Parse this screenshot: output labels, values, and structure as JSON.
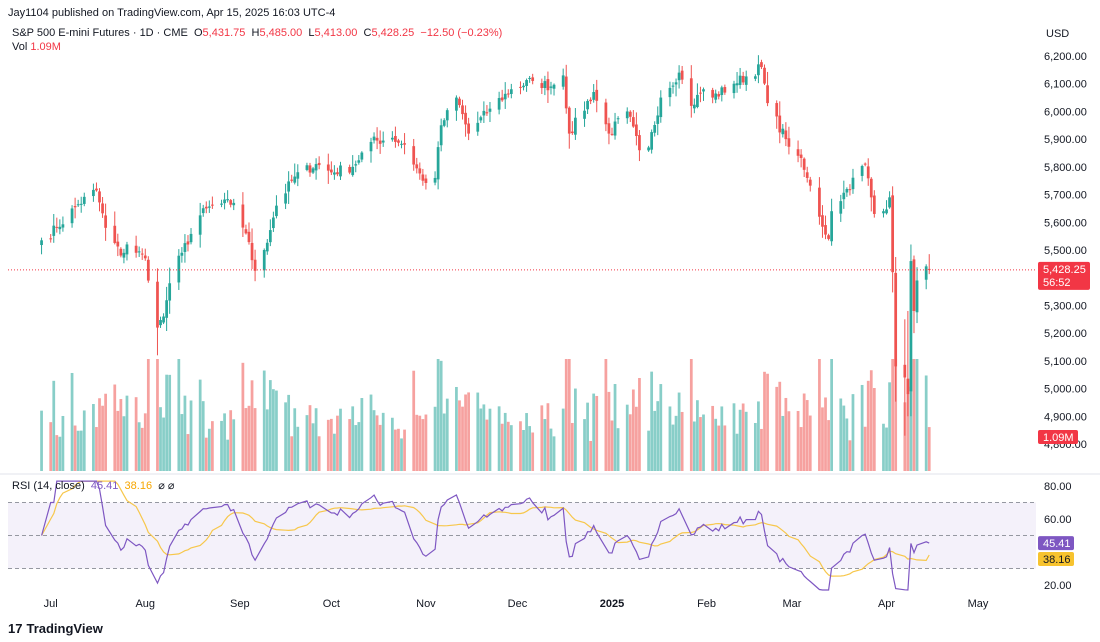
{
  "header": {
    "published": "Jay1104 published on TradingView.com, Apr 15, 2025 16:03 UTC-4",
    "symbol": "S&P 500 E-mini Futures · 1D · CME",
    "o_label": "O",
    "o_value": "5,431.75",
    "h_label": "H",
    "h_value": "5,485.00",
    "l_label": "L",
    "l_value": "5,413.00",
    "c_label": "C",
    "c_value": "5,428.25",
    "change": "−12.50 (−0.23%)",
    "vol_label": "Vol",
    "vol_value": "1.09M"
  },
  "price_axis": {
    "currency": "USD",
    "ticks": [
      "6,200.00",
      "6,100.00",
      "6,000.00",
      "5,900.00",
      "5,800.00",
      "5,700.00",
      "5,600.00",
      "5,500.00",
      "5,400.00",
      "5,300.00",
      "5,200.00",
      "5,100.00",
      "5,000.00",
      "4,900.00",
      "4,800.00"
    ],
    "last_price": "5,428.25",
    "countdown": "56:52",
    "vol_badge": "1.09M"
  },
  "rsi": {
    "label": "RSI (14, close)",
    "value": "45.41",
    "ma_value": "38.16",
    "icons": "⌀ ⌀",
    "ticks": [
      "80.00",
      "60.00",
      "20.00"
    ],
    "band_upper": 70,
    "band_middle": 50,
    "band_lower": 30
  },
  "time_axis": [
    "Jul",
    "Aug",
    "Sep",
    "Oct",
    "Nov",
    "Dec",
    "2025",
    "Feb",
    "Mar",
    "Apr",
    "May"
  ],
  "footer": {
    "brand": "TradingView",
    "logo": "17"
  },
  "colors": {
    "up": "#26a69a",
    "down": "#ef5350",
    "rsi": "#7e57c2",
    "rsi_ma": "#f7c74b",
    "band": "#ede7f6",
    "last": "#f23645"
  },
  "chart_data": {
    "type": "candlestick",
    "title": "S&P 500 E-mini Futures · 1D · CME",
    "ylabel": "USD",
    "ylim": [
      4750,
      6250
    ],
    "rsi_ylim": [
      15,
      85
    ],
    "anchors_close": [
      [
        "2024-06-28",
        5535
      ],
      [
        "2024-07-03",
        5580
      ],
      [
        "2024-07-10",
        5665
      ],
      [
        "2024-07-16",
        5715
      ],
      [
        "2024-07-19",
        5580
      ],
      [
        "2024-07-24",
        5480
      ],
      [
        "2024-07-26",
        5520
      ],
      [
        "2024-08-01",
        5470
      ],
      [
        "2024-08-05",
        5220
      ],
      [
        "2024-08-07",
        5260
      ],
      [
        "2024-08-09",
        5380
      ],
      [
        "2024-08-13",
        5490
      ],
      [
        "2024-08-19",
        5625
      ],
      [
        "2024-08-23",
        5660
      ],
      [
        "2024-08-30",
        5670
      ],
      [
        "2024-09-03",
        5560
      ],
      [
        "2024-09-06",
        5425
      ],
      [
        "2024-09-09",
        5500
      ],
      [
        "2024-09-13",
        5660
      ],
      [
        "2024-09-19",
        5765
      ],
      [
        "2024-09-26",
        5810
      ],
      [
        "2024-10-01",
        5780
      ],
      [
        "2024-10-08",
        5800
      ],
      [
        "2024-10-14",
        5890
      ],
      [
        "2024-10-21",
        5905
      ],
      [
        "2024-10-25",
        5880
      ],
      [
        "2024-10-31",
        5750
      ],
      [
        "2024-11-04",
        5760
      ],
      [
        "2024-11-06",
        5950
      ],
      [
        "2024-11-11",
        6050
      ],
      [
        "2024-11-15",
        5920
      ],
      [
        "2024-11-22",
        6010
      ],
      [
        "2024-11-29",
        6080
      ],
      [
        "2024-12-06",
        6110
      ],
      [
        "2024-12-12",
        6090
      ],
      [
        "2024-12-16",
        6130
      ],
      [
        "2024-12-18",
        5920
      ],
      [
        "2024-12-26",
        6070
      ],
      [
        "2024-12-31",
        5920
      ],
      [
        "2025-01-06",
        6000
      ],
      [
        "2025-01-10",
        5860
      ],
      [
        "2025-01-13",
        5870
      ],
      [
        "2025-01-17",
        6050
      ],
      [
        "2025-01-23",
        6140
      ],
      [
        "2025-01-27",
        6020
      ],
      [
        "2025-01-31",
        6080
      ],
      [
        "2025-02-03",
        6050
      ],
      [
        "2025-02-10",
        6100
      ],
      [
        "2025-02-19",
        6160
      ],
      [
        "2025-02-21",
        6030
      ],
      [
        "2025-02-27",
        5900
      ],
      [
        "2025-03-03",
        5840
      ],
      [
        "2025-03-06",
        5760
      ],
      [
        "2025-03-10",
        5620
      ],
      [
        "2025-03-13",
        5540
      ],
      [
        "2025-03-14",
        5640
      ],
      [
        "2025-03-19",
        5720
      ],
      [
        "2025-03-25",
        5810
      ],
      [
        "2025-03-28",
        5630
      ],
      [
        "2025-03-31",
        5640
      ],
      [
        "2025-04-02",
        5690
      ],
      [
        "2025-04-03",
        5420
      ],
      [
        "2025-04-04",
        5080
      ],
      [
        "2025-04-07",
        5040
      ],
      [
        "2025-04-08",
        4980
      ],
      [
        "2025-04-09",
        5460
      ],
      [
        "2025-04-10",
        5280
      ],
      [
        "2025-04-11",
        5390
      ],
      [
        "2025-04-14",
        5441
      ],
      [
        "2025-04-15",
        5428.25
      ]
    ],
    "last_candle": {
      "date": "2025-04-15",
      "open": 5431.75,
      "high": 5485.0,
      "low": 5413.0,
      "close": 5428.25,
      "volume": "1.09M"
    },
    "rsi_last": 45.41,
    "rsi_ma_last": 38.16,
    "x_range": [
      "2024-06-17",
      "2025-05-20"
    ]
  }
}
